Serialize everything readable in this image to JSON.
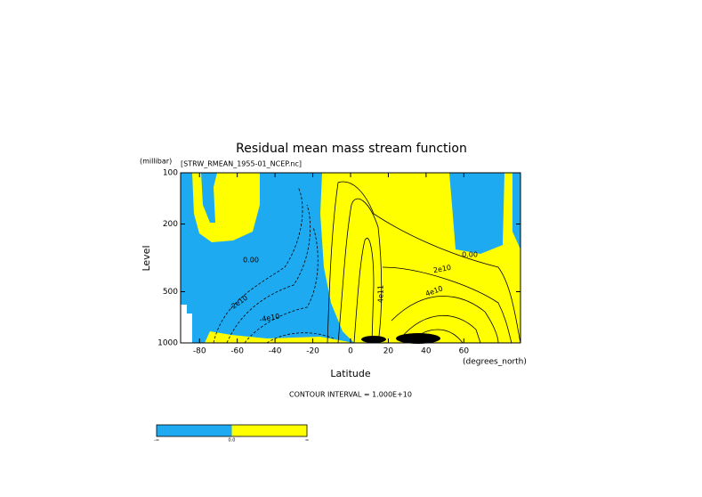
{
  "chart_data": {
    "type": "contour",
    "title": "Residual mean mass stream function",
    "subtitle": "[STRW_RMEAN_1955-01_NCEP.nc]",
    "y_unit_label": "(millibar)",
    "x_unit_label": "(degrees_north)",
    "xlabel": "Latitude",
    "ylabel": "Level",
    "note": "CONTOUR INTERVAL = 1.000E+10",
    "xlim": [
      -90,
      90
    ],
    "xticks": [
      -80,
      -60,
      -40,
      -20,
      0,
      20,
      40,
      60
    ],
    "ylim": [
      100,
      1000
    ],
    "yticks": [
      100,
      200,
      500,
      1000
    ],
    "ylog": true,
    "yreversed": true,
    "contour_labels": [
      "0.00",
      "0.00",
      "2e10",
      "4e10",
      "-2e10",
      "-4e10",
      "4e11"
    ],
    "colorbar": {
      "colors": [
        "#1eaaf1",
        "#ffff00"
      ],
      "ticks": [
        "-∞",
        "0.0",
        "∞"
      ]
    }
  }
}
